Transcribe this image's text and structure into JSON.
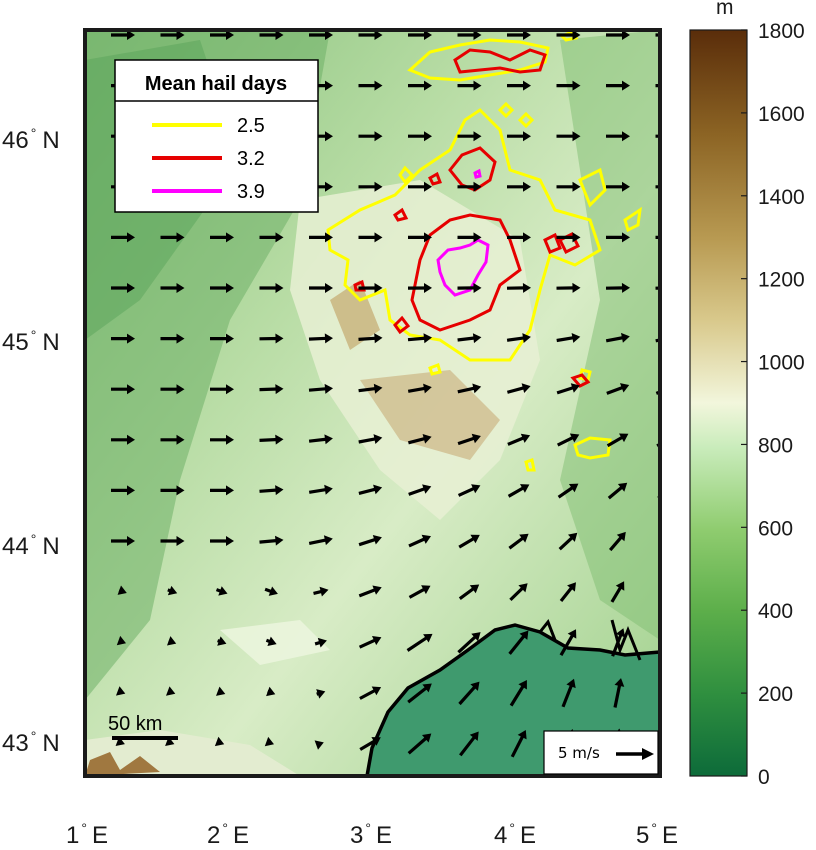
{
  "map": {
    "lat_labels": [
      {
        "deg": "46",
        "hemi": "N"
      },
      {
        "deg": "45",
        "hemi": "N"
      },
      {
        "deg": "44",
        "hemi": "N"
      },
      {
        "deg": "43",
        "hemi": "N"
      }
    ],
    "lon_labels": [
      {
        "deg": "1",
        "hemi": "E"
      },
      {
        "deg": "2",
        "hemi": "E"
      },
      {
        "deg": "3",
        "hemi": "E"
      },
      {
        "deg": "4",
        "hemi": "E"
      },
      {
        "deg": "5",
        "hemi": "E"
      }
    ],
    "scale_bar_label": "50 km",
    "reference_vector_label": "5 m/s",
    "colors": {
      "sea": "#3f9a6e",
      "coast": "#000000",
      "arrows": "#000000"
    }
  },
  "legend": {
    "title": "Mean hail days",
    "entries": [
      {
        "label": "2.5",
        "color": "#ffff00"
      },
      {
        "label": "3.2",
        "color": "#e60000"
      },
      {
        "label": "3.9",
        "color": "#ff00ff"
      }
    ]
  },
  "colorbar": {
    "unit": "m",
    "ticks": [
      "0",
      "200",
      "400",
      "600",
      "800",
      "1000",
      "1200",
      "1400",
      "1600",
      "1800"
    ],
    "range": [
      0,
      1800
    ],
    "colors": [
      "#0d6b3a",
      "#2f8f3f",
      "#5cae4a",
      "#8fcc6f",
      "#c9ecbb",
      "#f2f6dc",
      "#c9b674",
      "#a58a3c",
      "#7f5a1c",
      "#5a2d0a"
    ]
  }
}
